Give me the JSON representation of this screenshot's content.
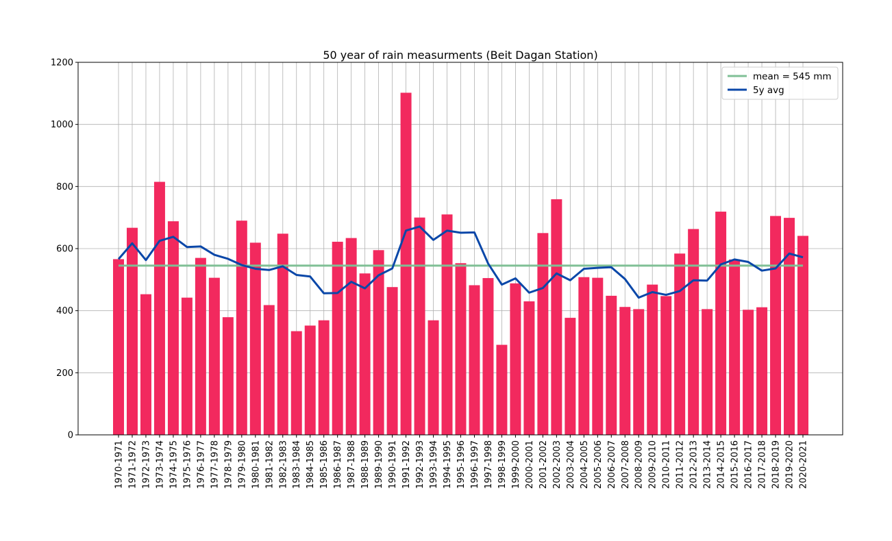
{
  "chart_data": {
    "type": "bar",
    "title": "50 year of rain measurments (Beit Dagan Station)",
    "xlabel": "",
    "ylabel": "",
    "ylim": [
      0,
      1200
    ],
    "yticks": [
      0,
      200,
      400,
      600,
      800,
      1000,
      1200
    ],
    "grid": true,
    "legend_position": "top-right",
    "categories": [
      "1970-1971",
      "1971-1972",
      "1972-1973",
      "1973-1974",
      "1974-1975",
      "1975-1976",
      "1976-1977",
      "1977-1978",
      "1978-1979",
      "1979-1980",
      "1980-1981",
      "1981-1982",
      "1982-1983",
      "1983-1984",
      "1984-1985",
      "1985-1986",
      "1986-1987",
      "1987-1988",
      "1988-1989",
      "1989-1990",
      "1990-1991",
      "1991-1992",
      "1992-1993",
      "1993-1994",
      "1994-1995",
      "1995-1996",
      "1996-1997",
      "1997-1998",
      "1998-1999",
      "1999-2000",
      "2000-2001",
      "2001-2002",
      "2002-2003",
      "2003-2004",
      "2004-2005",
      "2005-2006",
      "2006-2007",
      "2007-2008",
      "2008-2009",
      "2009-2010",
      "2010-2011",
      "2011-2012",
      "2012-2013",
      "2013-2014",
      "2014-2015",
      "2015-2016",
      "2016-2017",
      "2017-2018",
      "2018-2019",
      "2019-2020",
      "2020-2021"
    ],
    "values": [
      566,
      667,
      453,
      815,
      688,
      442,
      570,
      506,
      379,
      690,
      619,
      418,
      648,
      334,
      352,
      369,
      622,
      634,
      520,
      595,
      476,
      1102,
      700,
      369,
      710,
      553,
      482,
      505,
      290,
      488,
      430,
      650,
      759,
      377,
      508,
      506,
      448,
      412,
      405,
      484,
      447,
      584,
      663,
      405,
      719,
      565,
      403,
      411,
      705,
      699,
      641
    ],
    "bar_color": "#f2295e",
    "mean_line": {
      "name": "mean = 545 mm",
      "value": 545,
      "color": "#7fbf95"
    },
    "series": [
      {
        "name": "5y avg",
        "color": "#0a47a8",
        "values": [
          566,
          617,
          563,
          625,
          638,
          605,
          607,
          580,
          567,
          547,
          535,
          531,
          543,
          515,
          510,
          456,
          457,
          493,
          472,
          514,
          536,
          658,
          671,
          628,
          658,
          651,
          652,
          552,
          484,
          504,
          458,
          473,
          520,
          498,
          535,
          538,
          540,
          502,
          442,
          460,
          451,
          463,
          498,
          497,
          549,
          565,
          557,
          529,
          536,
          584,
          572
        ]
      }
    ]
  }
}
